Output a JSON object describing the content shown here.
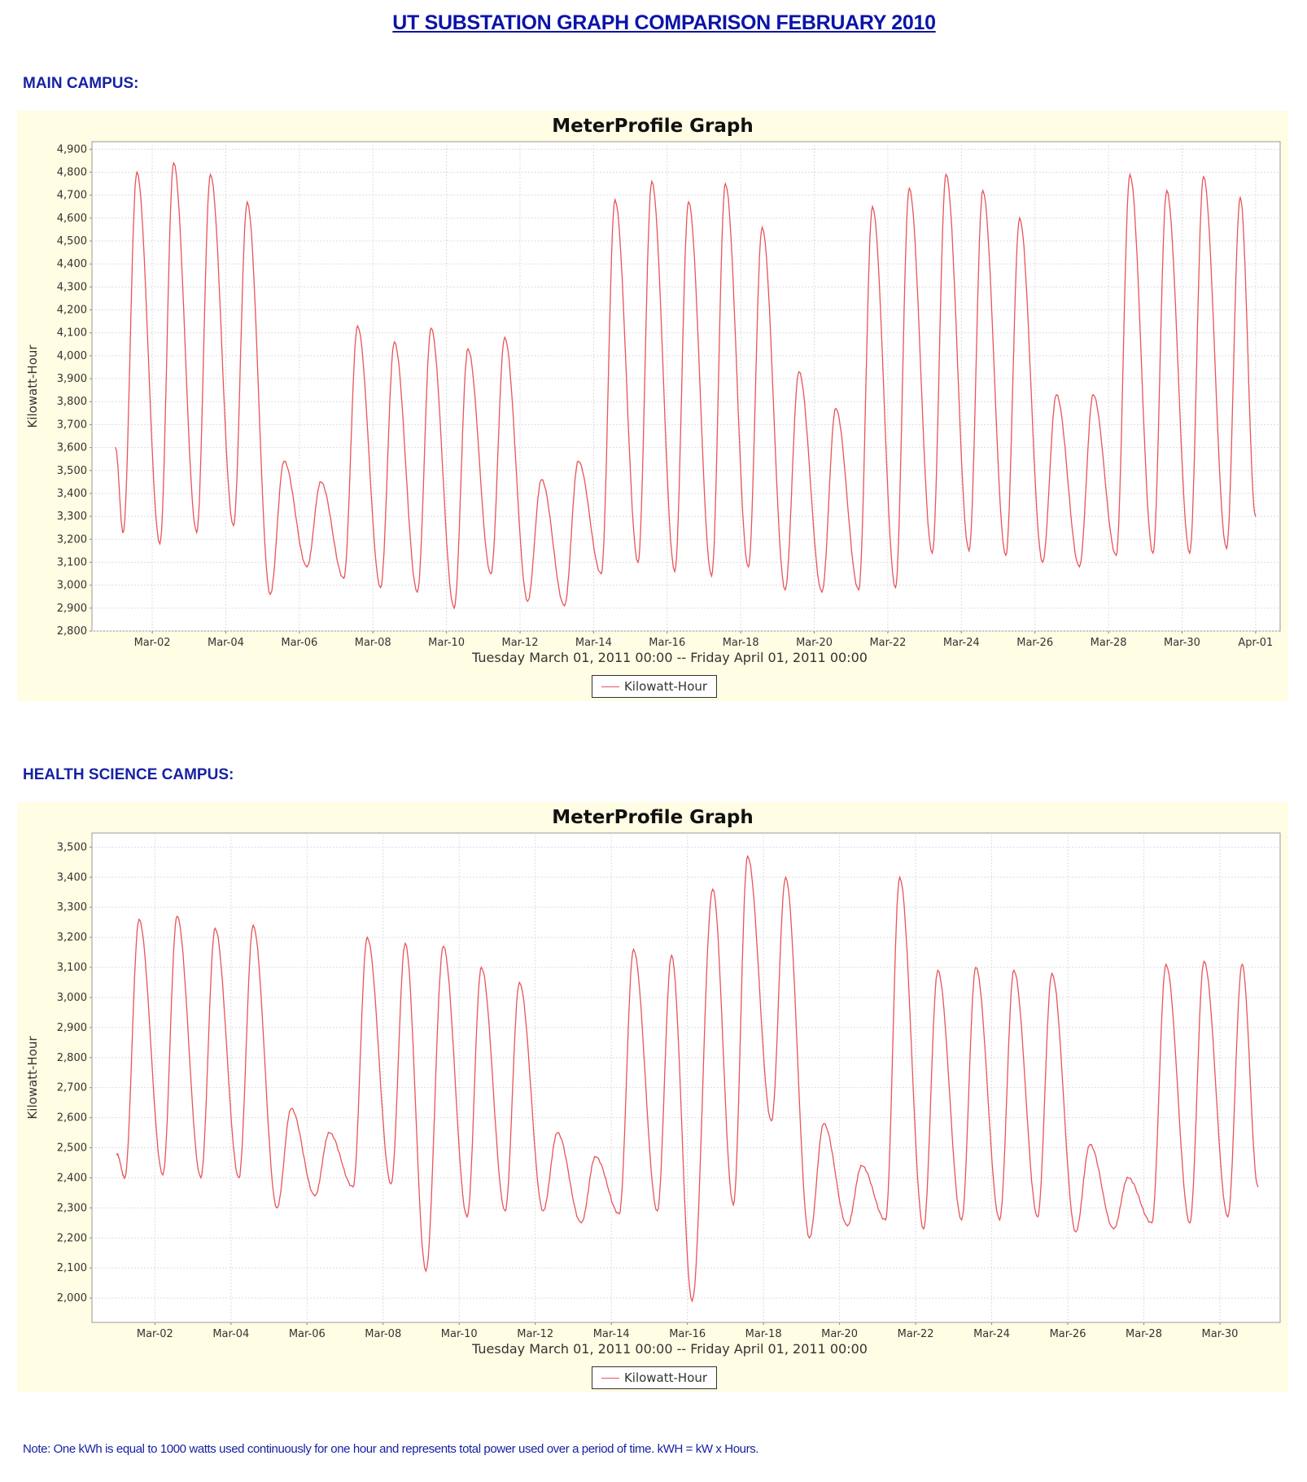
{
  "page": {
    "title": "UT SUBSTATION GRAPH COMPARISON FEBRUARY 2010",
    "note": "Note: One kWh is equal to 1000 watts used continuously for one hour and represents total power used over a period of time. kWH = kW x Hours."
  },
  "sections": [
    {
      "label": "MAIN CAMPUS:"
    },
    {
      "label": "HEALTH SCIENCE CAMPUS:"
    }
  ],
  "colors": {
    "series": "#e8545a",
    "panel_bg": "#fffde3",
    "heading": "#1622a3"
  },
  "chart_data": [
    {
      "type": "line",
      "title": "MeterProfile Graph",
      "xlabel": "Tuesday March 01, 2011 00:00 -- Friday April 01, 2011 00:00",
      "ylabel": "Kilowatt-Hour",
      "legend": "bottom-center",
      "grid": true,
      "xlim": [
        "2011-02-28 08:40",
        "2011-04-01 16:00"
      ],
      "ylim": [
        2800,
        4933
      ],
      "yticks": [
        2800,
        2900,
        3000,
        3100,
        3200,
        3300,
        3400,
        3500,
        3600,
        3700,
        3800,
        3900,
        4000,
        4100,
        4200,
        4300,
        4400,
        4500,
        4600,
        4700,
        4800,
        4900
      ],
      "xticks": [
        {
          "date": "2011-03-02",
          "label": "Mar-02"
        },
        {
          "date": "2011-03-04",
          "label": "Mar-04"
        },
        {
          "date": "2011-03-06",
          "label": "Mar-06"
        },
        {
          "date": "2011-03-08",
          "label": "Mar-08"
        },
        {
          "date": "2011-03-10",
          "label": "Mar-10"
        },
        {
          "date": "2011-03-12",
          "label": "Mar-12"
        },
        {
          "date": "2011-03-14",
          "label": "Mar-14"
        },
        {
          "date": "2011-03-16",
          "label": "Mar-16"
        },
        {
          "date": "2011-03-18",
          "label": "Mar-18"
        },
        {
          "date": "2011-03-20",
          "label": "Mar-20"
        },
        {
          "date": "2011-03-22",
          "label": "Mar-22"
        },
        {
          "date": "2011-03-24",
          "label": "Mar-24"
        },
        {
          "date": "2011-03-26",
          "label": "Mar-26"
        },
        {
          "date": "2011-03-28",
          "label": "Mar-28"
        },
        {
          "date": "2011-03-30",
          "label": "Mar-30"
        },
        {
          "date": "2011-04-01",
          "label": "Apr-01"
        }
      ],
      "series": [
        {
          "name": "Kilowatt-Hour",
          "points": [
            [
              "2011-03-01 00:00",
              3600
            ],
            [
              "2011-03-01 05:00",
              3230
            ],
            [
              "2011-03-01 14:00",
              4800
            ],
            [
              "2011-03-02 05:00",
              3180
            ],
            [
              "2011-03-02 14:00",
              4840
            ],
            [
              "2011-03-03 05:00",
              3230
            ],
            [
              "2011-03-03 14:00",
              4790
            ],
            [
              "2011-03-04 05:00",
              3260
            ],
            [
              "2011-03-04 14:00",
              4670
            ],
            [
              "2011-03-05 05:00",
              2960
            ],
            [
              "2011-03-05 14:00",
              3540
            ],
            [
              "2011-03-06 05:00",
              3080
            ],
            [
              "2011-03-06 14:00",
              3450
            ],
            [
              "2011-03-07 05:00",
              3030
            ],
            [
              "2011-03-07 14:00",
              4130
            ],
            [
              "2011-03-08 05:00",
              2990
            ],
            [
              "2011-03-08 14:00",
              4060
            ],
            [
              "2011-03-09 05:00",
              2970
            ],
            [
              "2011-03-09 14:00",
              4120
            ],
            [
              "2011-03-10 05:00",
              2900
            ],
            [
              "2011-03-10 14:00",
              4030
            ],
            [
              "2011-03-11 05:00",
              3050
            ],
            [
              "2011-03-11 14:00",
              4080
            ],
            [
              "2011-03-12 05:00",
              2930
            ],
            [
              "2011-03-12 14:00",
              3460
            ],
            [
              "2011-03-13 05:00",
              2910
            ],
            [
              "2011-03-13 14:00",
              3540
            ],
            [
              "2011-03-14 05:00",
              3050
            ],
            [
              "2011-03-14 14:00",
              4680
            ],
            [
              "2011-03-15 05:00",
              3100
            ],
            [
              "2011-03-15 14:00",
              4760
            ],
            [
              "2011-03-16 05:00",
              3060
            ],
            [
              "2011-03-16 14:00",
              4670
            ],
            [
              "2011-03-17 05:00",
              3040
            ],
            [
              "2011-03-17 14:00",
              4750
            ],
            [
              "2011-03-18 05:00",
              3080
            ],
            [
              "2011-03-18 14:00",
              4560
            ],
            [
              "2011-03-19 05:00",
              2980
            ],
            [
              "2011-03-19 14:00",
              3930
            ],
            [
              "2011-03-20 05:00",
              2970
            ],
            [
              "2011-03-20 14:00",
              3770
            ],
            [
              "2011-03-21 05:00",
              2980
            ],
            [
              "2011-03-21 14:00",
              4650
            ],
            [
              "2011-03-22 05:00",
              2990
            ],
            [
              "2011-03-22 14:00",
              4730
            ],
            [
              "2011-03-23 05:00",
              3140
            ],
            [
              "2011-03-23 14:00",
              4790
            ],
            [
              "2011-03-24 05:00",
              3150
            ],
            [
              "2011-03-24 14:00",
              4720
            ],
            [
              "2011-03-25 05:00",
              3130
            ],
            [
              "2011-03-25 14:00",
              4600
            ],
            [
              "2011-03-26 05:00",
              3100
            ],
            [
              "2011-03-26 14:00",
              3830
            ],
            [
              "2011-03-27 05:00",
              3080
            ],
            [
              "2011-03-27 14:00",
              3830
            ],
            [
              "2011-03-28 05:00",
              3130
            ],
            [
              "2011-03-28 14:00",
              4790
            ],
            [
              "2011-03-29 05:00",
              3140
            ],
            [
              "2011-03-29 14:00",
              4720
            ],
            [
              "2011-03-30 05:00",
              3140
            ],
            [
              "2011-03-30 14:00",
              4780
            ],
            [
              "2011-03-31 05:00",
              3160
            ],
            [
              "2011-03-31 14:00",
              4690
            ],
            [
              "2011-04-01 00:00",
              3300
            ]
          ]
        }
      ]
    },
    {
      "type": "line",
      "title": "MeterProfile Graph",
      "xlabel": "Tuesday March 01, 2011 00:00 -- Friday April 01, 2011 00:00",
      "ylabel": "Kilowatt-Hour",
      "legend": "bottom-center",
      "grid": true,
      "xlim": [
        "2011-02-28 08:17",
        "2011-03-31 14:00"
      ],
      "ylim": [
        1919,
        3547
      ],
      "yticks": [
        2000,
        2100,
        2200,
        2300,
        2400,
        2500,
        2600,
        2700,
        2800,
        2900,
        3000,
        3100,
        3200,
        3300,
        3400,
        3500
      ],
      "xticks": [
        {
          "date": "2011-03-02",
          "label": "Mar-02"
        },
        {
          "date": "2011-03-04",
          "label": "Mar-04"
        },
        {
          "date": "2011-03-06",
          "label": "Mar-06"
        },
        {
          "date": "2011-03-08",
          "label": "Mar-08"
        },
        {
          "date": "2011-03-10",
          "label": "Mar-10"
        },
        {
          "date": "2011-03-12",
          "label": "Mar-12"
        },
        {
          "date": "2011-03-14",
          "label": "Mar-14"
        },
        {
          "date": "2011-03-16",
          "label": "Mar-16"
        },
        {
          "date": "2011-03-18",
          "label": "Mar-18"
        },
        {
          "date": "2011-03-20",
          "label": "Mar-20"
        },
        {
          "date": "2011-03-22",
          "label": "Mar-22"
        },
        {
          "date": "2011-03-24",
          "label": "Mar-24"
        },
        {
          "date": "2011-03-26",
          "label": "Mar-26"
        },
        {
          "date": "2011-03-28",
          "label": "Mar-28"
        },
        {
          "date": "2011-03-30",
          "label": "Mar-30"
        }
      ],
      "series": [
        {
          "name": "Kilowatt-Hour",
          "points": [
            [
              "2011-03-01 00:00",
              2480
            ],
            [
              "2011-03-01 05:00",
              2400
            ],
            [
              "2011-03-01 14:00",
              3260
            ],
            [
              "2011-03-02 05:00",
              2410
            ],
            [
              "2011-03-02 14:00",
              3270
            ],
            [
              "2011-03-03 05:00",
              2400
            ],
            [
              "2011-03-03 14:00",
              3230
            ],
            [
              "2011-03-04 05:00",
              2400
            ],
            [
              "2011-03-04 14:00",
              3240
            ],
            [
              "2011-03-05 05:00",
              2300
            ],
            [
              "2011-03-05 14:00",
              2630
            ],
            [
              "2011-03-06 05:00",
              2340
            ],
            [
              "2011-03-06 14:00",
              2550
            ],
            [
              "2011-03-07 05:00",
              2370
            ],
            [
              "2011-03-07 14:00",
              3200
            ],
            [
              "2011-03-08 05:00",
              2380
            ],
            [
              "2011-03-08 14:00",
              3180
            ],
            [
              "2011-03-09 03:00",
              2090
            ],
            [
              "2011-03-09 14:00",
              3170
            ],
            [
              "2011-03-10 05:00",
              2270
            ],
            [
              "2011-03-10 14:00",
              3100
            ],
            [
              "2011-03-11 05:00",
              2290
            ],
            [
              "2011-03-11 14:00",
              3050
            ],
            [
              "2011-03-12 05:00",
              2290
            ],
            [
              "2011-03-12 14:00",
              2550
            ],
            [
              "2011-03-13 05:00",
              2250
            ],
            [
              "2011-03-13 14:00",
              2470
            ],
            [
              "2011-03-14 05:00",
              2280
            ],
            [
              "2011-03-14 14:00",
              3160
            ],
            [
              "2011-03-15 05:00",
              2290
            ],
            [
              "2011-03-15 14:00",
              3140
            ],
            [
              "2011-03-16 03:00",
              1990
            ],
            [
              "2011-03-16 16:00",
              3360
            ],
            [
              "2011-03-17 05:00",
              2310
            ],
            [
              "2011-03-17 14:00",
              3470
            ],
            [
              "2011-03-18 05:00",
              2590
            ],
            [
              "2011-03-18 14:00",
              3400
            ],
            [
              "2011-03-19 05:00",
              2200
            ],
            [
              "2011-03-19 14:00",
              2580
            ],
            [
              "2011-03-20 05:00",
              2240
            ],
            [
              "2011-03-20 14:00",
              2440
            ],
            [
              "2011-03-21 05:00",
              2260
            ],
            [
              "2011-03-21 14:00",
              3400
            ],
            [
              "2011-03-22 05:00",
              2230
            ],
            [
              "2011-03-22 14:00",
              3090
            ],
            [
              "2011-03-23 05:00",
              2260
            ],
            [
              "2011-03-23 14:00",
              3100
            ],
            [
              "2011-03-24 05:00",
              2260
            ],
            [
              "2011-03-24 14:00",
              3090
            ],
            [
              "2011-03-25 05:00",
              2270
            ],
            [
              "2011-03-25 14:00",
              3080
            ],
            [
              "2011-03-26 05:00",
              2220
            ],
            [
              "2011-03-26 14:00",
              2510
            ],
            [
              "2011-03-27 05:00",
              2230
            ],
            [
              "2011-03-27 14:00",
              2400
            ],
            [
              "2011-03-28 05:00",
              2250
            ],
            [
              "2011-03-28 14:00",
              3110
            ],
            [
              "2011-03-29 05:00",
              2250
            ],
            [
              "2011-03-29 14:00",
              3120
            ],
            [
              "2011-03-30 05:00",
              2270
            ],
            [
              "2011-03-30 14:00",
              3110
            ],
            [
              "2011-03-31 00:00",
              2370
            ]
          ]
        }
      ]
    }
  ]
}
